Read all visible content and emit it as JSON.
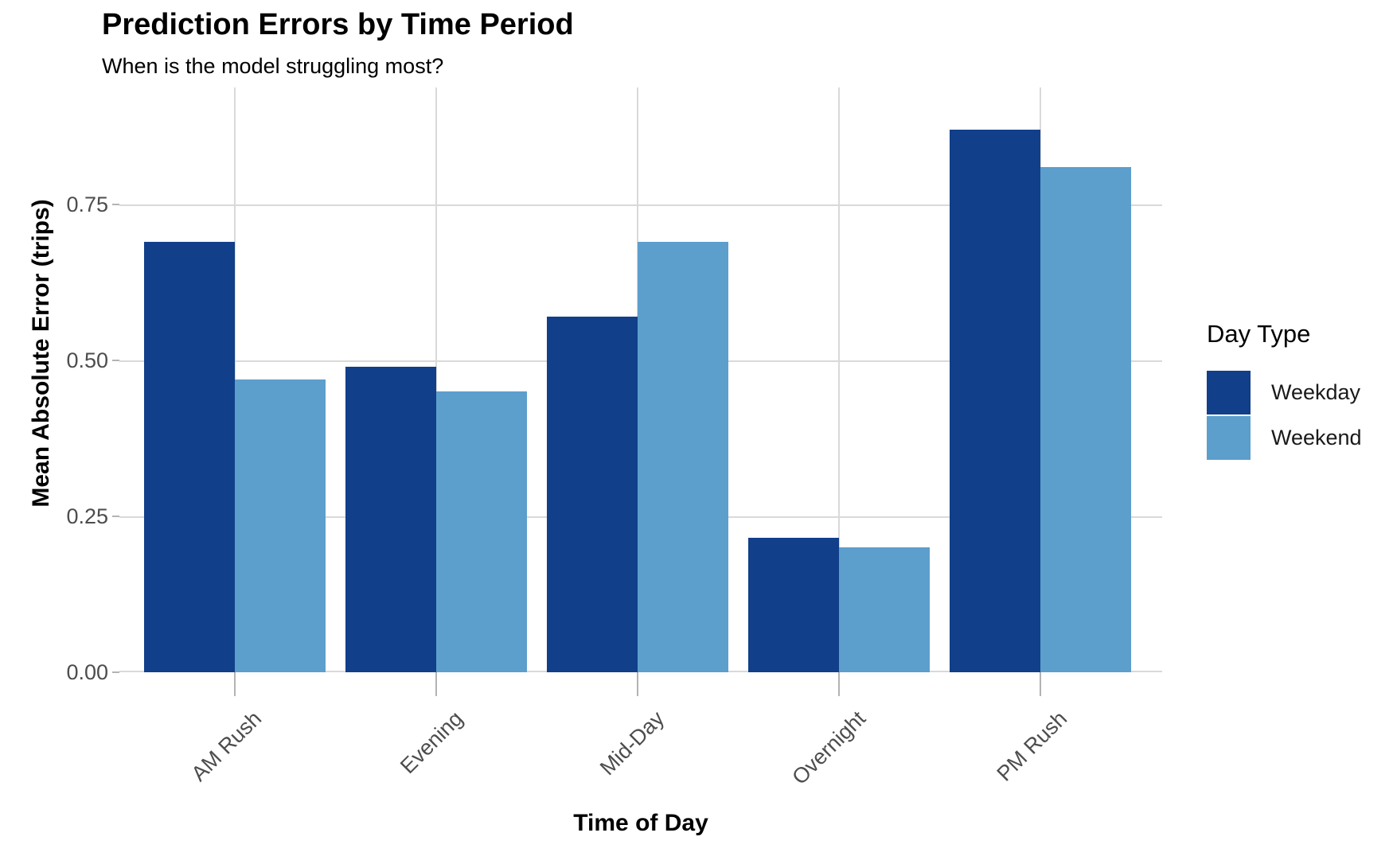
{
  "title": "Prediction Errors by Time Period",
  "subtitle": "When is the model struggling most?",
  "chart_data": {
    "type": "bar",
    "categories": [
      "AM Rush",
      "Evening",
      "Mid-Day",
      "Overnight",
      "PM Rush"
    ],
    "series": [
      {
        "name": "Weekday",
        "color": "#113f89",
        "values": [
          0.69,
          0.49,
          0.57,
          0.215,
          0.87
        ]
      },
      {
        "name": "Weekend",
        "color": "#5c9ecc",
        "values": [
          0.47,
          0.45,
          0.69,
          0.2,
          0.81
        ]
      }
    ],
    "title": "Prediction Errors by Time Period",
    "subtitle": "When is the model struggling most?",
    "xlabel": "Time of Day",
    "ylabel": "Mean Absolute Error (trips)",
    "ylim": [
      0,
      0.9375
    ],
    "yticks": {
      "values": [
        0,
        0.25,
        0.5,
        0.75
      ],
      "labels": [
        "0.00",
        "0.25",
        "0.50",
        "0.75"
      ]
    },
    "grid": "major horizontal and vertical, light gray, white panel",
    "legend_title": "Day Type",
    "legend_position": "right",
    "bar_orientation": "vertical, grouped (dodged)"
  },
  "colors": {
    "weekday_bar": "#113f89",
    "weekend_bar": "#5c9ecc",
    "gridline": "#d9d9d9",
    "tick_mark": "#b3b3b3",
    "tick_label_text": "#4d4d4d",
    "axis_title_text": "#000000",
    "background": "#ffffff"
  }
}
